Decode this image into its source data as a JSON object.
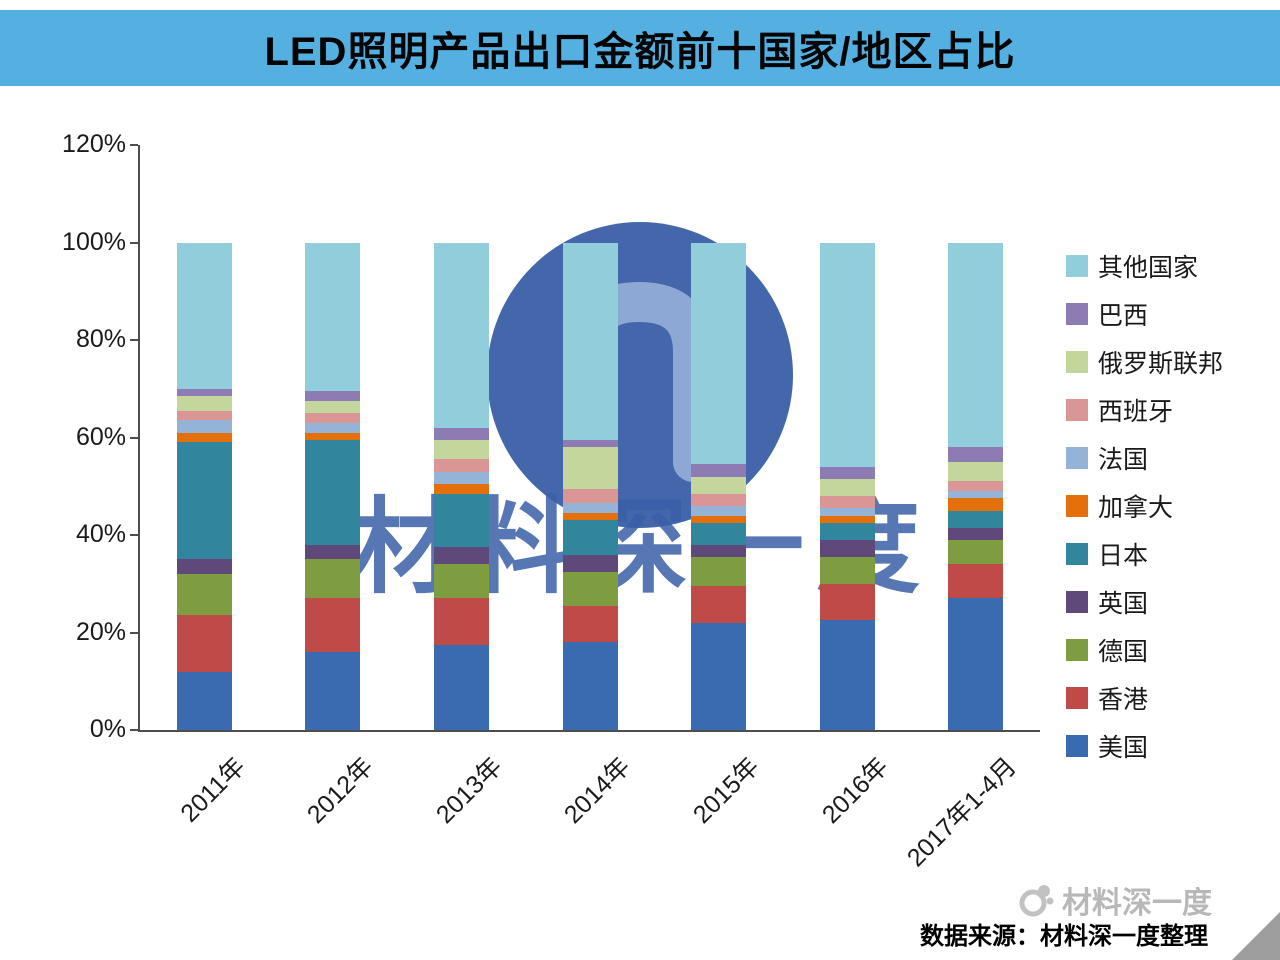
{
  "header": {
    "title": "LED照明产品出口金额前十国家/地区占比"
  },
  "colors": {
    "banner": "#55B0E2",
    "axis": "#4D4D4D",
    "watermark": "#3A5FA8"
  },
  "chart_data": {
    "type": "bar",
    "variant": "stacked-100-percent",
    "title": "LED照明产品出口金额前十国家/地区占比",
    "categories": [
      "2011年",
      "2012年",
      "2013年",
      "2014年",
      "2015年",
      "2016年",
      "2017年1-4月"
    ],
    "unit": "%",
    "ylim": [
      0,
      120
    ],
    "yticks": [
      "0%",
      "20%",
      "40%",
      "60%",
      "80%",
      "100%",
      "120%"
    ],
    "grid": false,
    "legend_position": "right",
    "series_bottom_to_top": [
      {
        "name": "美国",
        "color": "#3A6BB0",
        "values": [
          12,
          16,
          17.5,
          18,
          22,
          22.5,
          27
        ]
      },
      {
        "name": "香港",
        "color": "#BE4B48",
        "values": [
          11.5,
          11,
          9.5,
          7.5,
          7.5,
          7.5,
          7
        ]
      },
      {
        "name": "德国",
        "color": "#7E9D40",
        "values": [
          8.5,
          8,
          7,
          7,
          6,
          5.5,
          5
        ]
      },
      {
        "name": "英国",
        "color": "#5F497A",
        "values": [
          3,
          3,
          3.5,
          3.5,
          2.5,
          3.5,
          2.5
        ]
      },
      {
        "name": "日本",
        "color": "#31859C",
        "values": [
          24,
          21.5,
          11,
          7,
          4.5,
          3.5,
          3.5
        ]
      },
      {
        "name": "加拿大",
        "color": "#E3700A",
        "values": [
          2,
          1.5,
          2,
          1.5,
          1.5,
          1.5,
          2.5
        ]
      },
      {
        "name": "法国",
        "color": "#95B3D7",
        "values": [
          2.5,
          2,
          2.5,
          2,
          2,
          1.5,
          1.5
        ]
      },
      {
        "name": "西班牙",
        "color": "#D99694",
        "values": [
          2,
          2,
          2.5,
          3,
          2.5,
          2.5,
          2
        ]
      },
      {
        "name": "俄罗斯联邦",
        "color": "#C3D69B",
        "values": [
          3,
          2.5,
          4,
          8.5,
          3.5,
          3.5,
          4
        ]
      },
      {
        "name": "巴西",
        "color": "#8D7BB4",
        "values": [
          1.5,
          2,
          2.5,
          1.5,
          2.5,
          2.5,
          3
        ]
      },
      {
        "name": "其他国家",
        "color": "#92CDDC",
        "values": [
          30,
          30.5,
          38,
          40.5,
          45.5,
          46,
          42
        ]
      }
    ]
  },
  "watermark": {
    "text": "材料深一度"
  },
  "footer": {
    "brand": "材料深一度",
    "source": "数据来源：材料深一度整理"
  }
}
